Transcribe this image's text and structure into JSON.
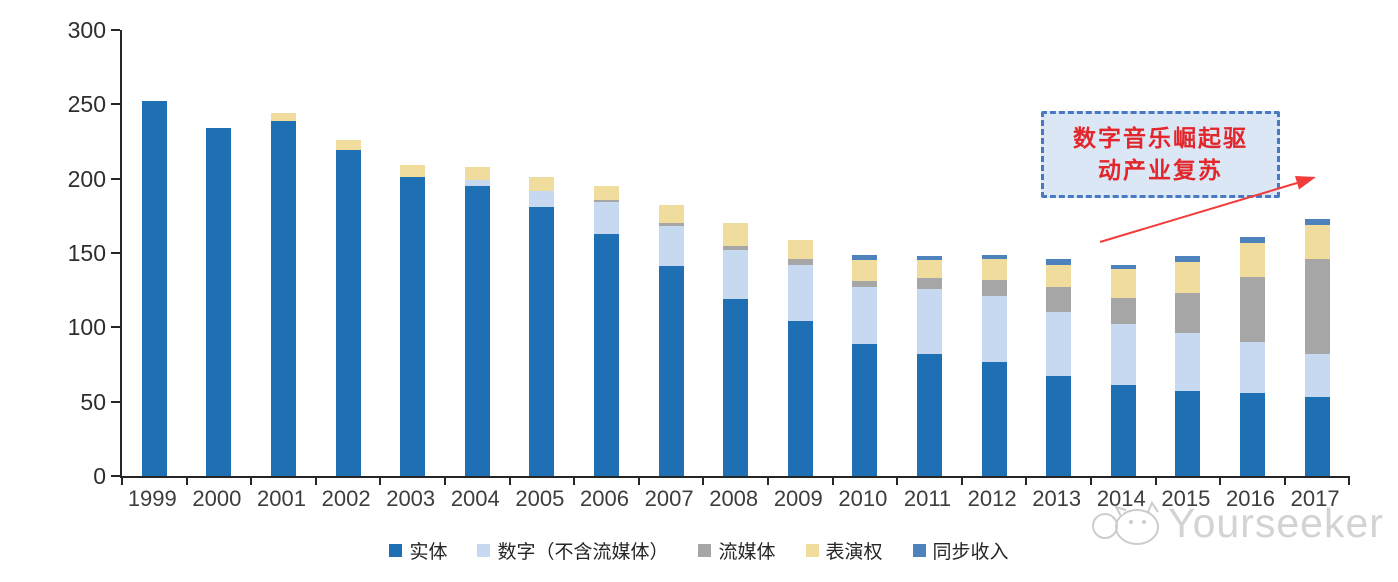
{
  "chart_data": {
    "type": "bar",
    "stacked": true,
    "title": "",
    "xlabel": "",
    "ylabel": "",
    "categories": [
      "1999",
      "2000",
      "2001",
      "2002",
      "2003",
      "2004",
      "2005",
      "2006",
      "2007",
      "2008",
      "2009",
      "2010",
      "2011",
      "2012",
      "2013",
      "2014",
      "2015",
      "2016",
      "2017"
    ],
    "series": [
      {
        "name": "实体",
        "color": "#1f6fb4",
        "values": [
          252,
          234,
          239,
          219,
          201,
          195,
          181,
          163,
          141,
          119,
          104,
          89,
          82,
          77,
          67,
          61,
          57,
          56,
          53
        ]
      },
      {
        "name": "数字（不含流媒体）",
        "color": "#c7d9f0",
        "values": [
          0,
          0,
          0,
          0,
          0,
          4,
          11,
          21,
          27,
          33,
          38,
          38,
          44,
          44,
          43,
          41,
          39,
          34,
          29
        ]
      },
      {
        "name": "流媒体",
        "color": "#a6a6a6",
        "values": [
          0,
          0,
          0,
          0,
          0,
          0,
          0,
          2,
          2,
          3,
          4,
          4,
          7,
          11,
          17,
          18,
          27,
          44,
          64
        ]
      },
      {
        "name": "表演权",
        "color": "#f0dc9d",
        "values": [
          0,
          0,
          5,
          7,
          8,
          9,
          9,
          9,
          12,
          15,
          13,
          14,
          12,
          14,
          15,
          19,
          21,
          23,
          23
        ]
      },
      {
        "name": "同步收入",
        "color": "#4d82bd",
        "values": [
          0,
          0,
          0,
          0,
          0,
          0,
          0,
          0,
          0,
          0,
          0,
          4,
          3,
          3,
          4,
          3,
          4,
          4,
          4
        ]
      }
    ],
    "ylim": [
      0,
      300
    ],
    "yticks": [
      0,
      50,
      100,
      150,
      200,
      250,
      300
    ],
    "grid": false,
    "legend_position": "bottom"
  },
  "annotation": {
    "line1": "数字音乐崛起驱",
    "line2": "动产业复苏",
    "full_text": "数字音乐崛起驱动产业复苏"
  },
  "watermark": {
    "text": "Yourseeker",
    "icon": "cat-search-logo"
  },
  "colors": {
    "axis": "#262626",
    "annotation_border": "#4a79c4",
    "annotation_fill": "#dbe7f5",
    "annotation_text": "#e2262b",
    "arrow": "#f23b3b",
    "watermark": "#d3d3d3"
  }
}
